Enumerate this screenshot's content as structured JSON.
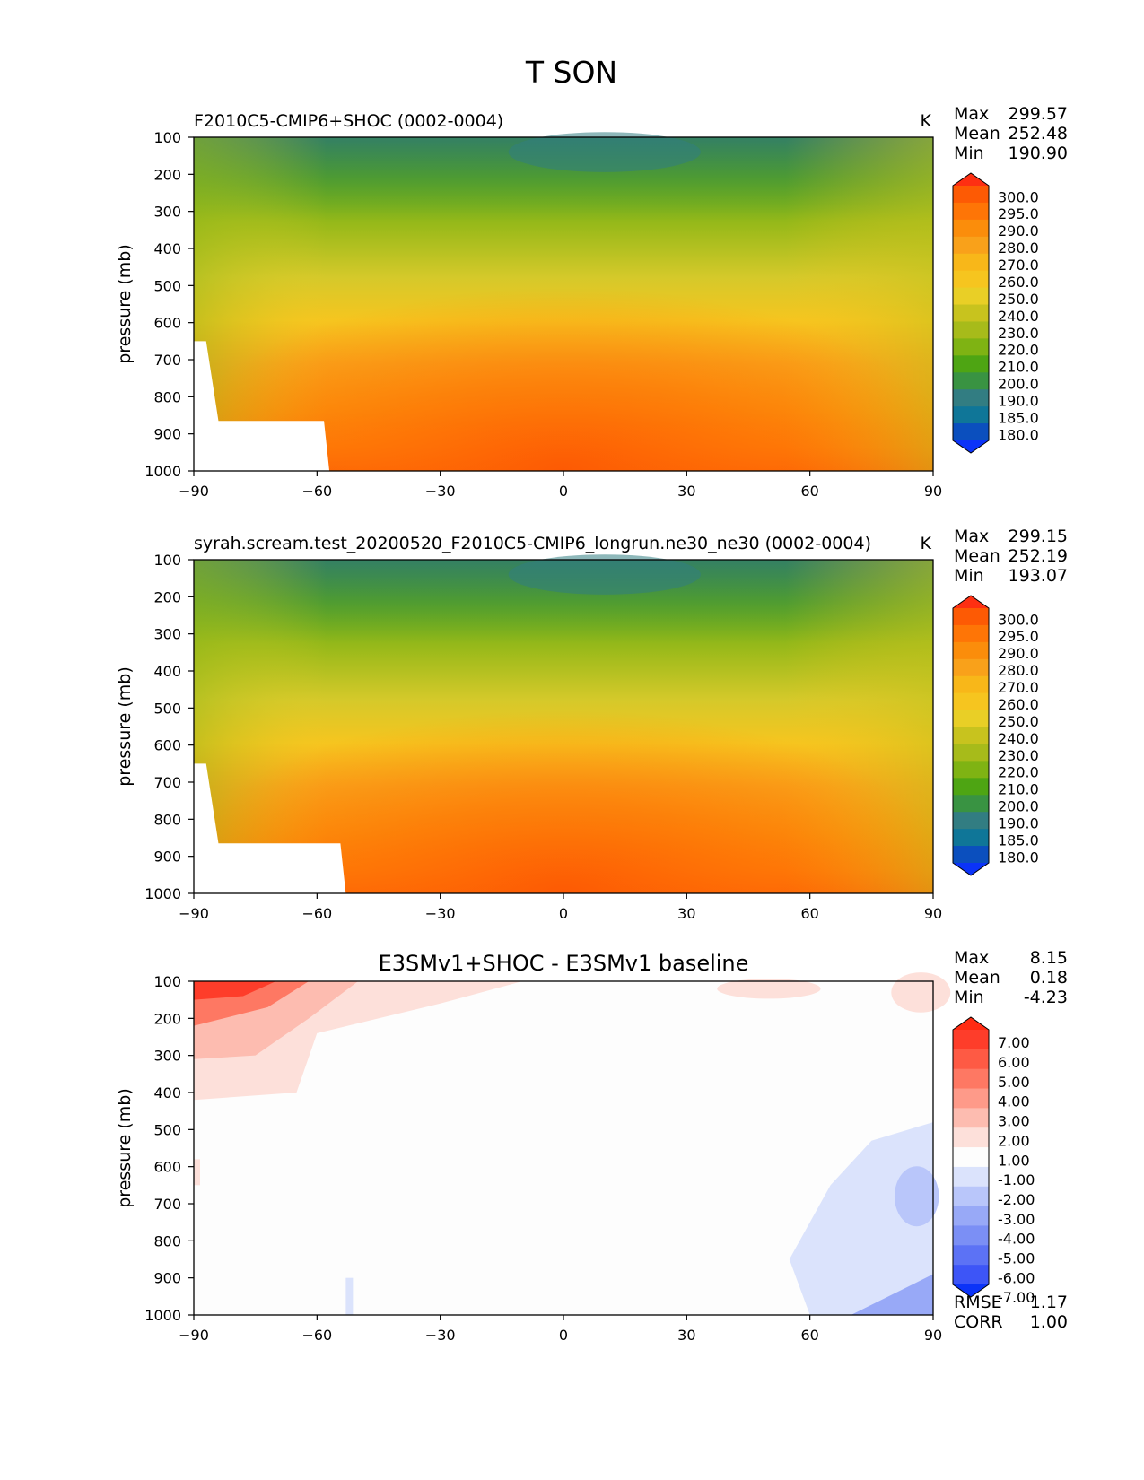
{
  "page_title": "T SON",
  "chart_data": [
    {
      "type": "contour",
      "title": "F2010C5-CMIP6+SHOC (0002-0004)",
      "units": "K",
      "ylabel": "pressure (mb)",
      "xlabel": "",
      "xlim": [
        -90,
        90
      ],
      "ylim": [
        1000,
        100
      ],
      "x_ticks": [
        "−90",
        "−60",
        "−30",
        "0",
        "30",
        "60",
        "90"
      ],
      "y_ticks": [
        "100",
        "200",
        "300",
        "400",
        "500",
        "600",
        "700",
        "800",
        "900",
        "1000"
      ],
      "stats": [
        {
          "label": "Max",
          "value": "299.57"
        },
        {
          "label": "Mean",
          "value": "252.48"
        },
        {
          "label": "Min",
          "value": "190.90"
        }
      ],
      "colorbar_levels": [
        "300.0",
        "295.0",
        "290.0",
        "280.0",
        "270.0",
        "260.0",
        "250.0",
        "240.0",
        "230.0",
        "220.0",
        "210.0",
        "200.0",
        "190.0",
        "185.0",
        "180.0"
      ],
      "colorbar_colors": [
        "#fe2f12",
        "#fd5a04",
        "#fe7506",
        "#fb8d0b",
        "#f9a11a",
        "#f8b719",
        "#f6c51f",
        "#e9cf26",
        "#c8c31e",
        "#a7bb1a",
        "#7fb313",
        "#4ea513",
        "#399342",
        "#327d82",
        "#0f7698",
        "#0b4fbe",
        "#0b33f8"
      ],
      "surface_fill": "#ffffff"
    },
    {
      "type": "contour",
      "title": "syrah.scream.test_20200520_F2010C5-CMIP6_longrun.ne30_ne30 (0002-0004)",
      "units": "K",
      "ylabel": "pressure (mb)",
      "xlabel": "",
      "xlim": [
        -90,
        90
      ],
      "ylim": [
        1000,
        100
      ],
      "x_ticks": [
        "−90",
        "−60",
        "−30",
        "0",
        "30",
        "60",
        "90"
      ],
      "y_ticks": [
        "100",
        "200",
        "300",
        "400",
        "500",
        "600",
        "700",
        "800",
        "900",
        "1000"
      ],
      "stats": [
        {
          "label": "Max",
          "value": "299.15"
        },
        {
          "label": "Mean",
          "value": "252.19"
        },
        {
          "label": "Min",
          "value": "193.07"
        }
      ],
      "colorbar_levels": [
        "300.0",
        "295.0",
        "290.0",
        "280.0",
        "270.0",
        "260.0",
        "250.0",
        "240.0",
        "230.0",
        "220.0",
        "210.0",
        "200.0",
        "190.0",
        "185.0",
        "180.0"
      ],
      "colorbar_colors": [
        "#fe2f12",
        "#fd5a04",
        "#fe7506",
        "#fb8d0b",
        "#f9a11a",
        "#f8b719",
        "#f6c51f",
        "#e9cf26",
        "#c8c31e",
        "#a7bb1a",
        "#7fb313",
        "#4ea513",
        "#399342",
        "#327d82",
        "#0f7698",
        "#0b4fbe",
        "#0b33f8"
      ],
      "surface_fill": "#ffffff"
    },
    {
      "type": "contour",
      "title": "E3SMv1+SHOC - E3SMv1 baseline",
      "units": "",
      "ylabel": "pressure (mb)",
      "xlabel": "",
      "xlim": [
        -90,
        90
      ],
      "ylim": [
        1000,
        100
      ],
      "x_ticks": [
        "−90",
        "−60",
        "−30",
        "0",
        "30",
        "60",
        "90"
      ],
      "y_ticks": [
        "100",
        "200",
        "300",
        "400",
        "500",
        "600",
        "700",
        "800",
        "900",
        "1000"
      ],
      "stats": [
        {
          "label": "Max",
          "value": "8.15"
        },
        {
          "label": "Mean",
          "value": "0.18"
        },
        {
          "label": "Min",
          "value": "-4.23"
        }
      ],
      "colorbar_levels": [
        "7.00",
        "6.00",
        "5.00",
        "4.00",
        "3.00",
        "2.00",
        "1.00",
        "-1.00",
        "-2.00",
        "-3.00",
        "-4.00",
        "-5.00",
        "-6.00",
        "-7.00"
      ],
      "colorbar_colors": [
        "#ff2b12",
        "#fe3d2a",
        "#fe5a44",
        "#fe7863",
        "#fe9a89",
        "#fdbcb0",
        "#fde0da",
        "#fdfdfd",
        "#dbe3fc",
        "#b9c6fa",
        "#98a9f7",
        "#7b8ff5",
        "#5c72f5",
        "#3d55f7",
        "#0b33f8"
      ],
      "bottom_stats": [
        {
          "label": "RMSE",
          "value": "1.17"
        },
        {
          "label": "CORR",
          "value": "1.00"
        }
      ]
    }
  ]
}
